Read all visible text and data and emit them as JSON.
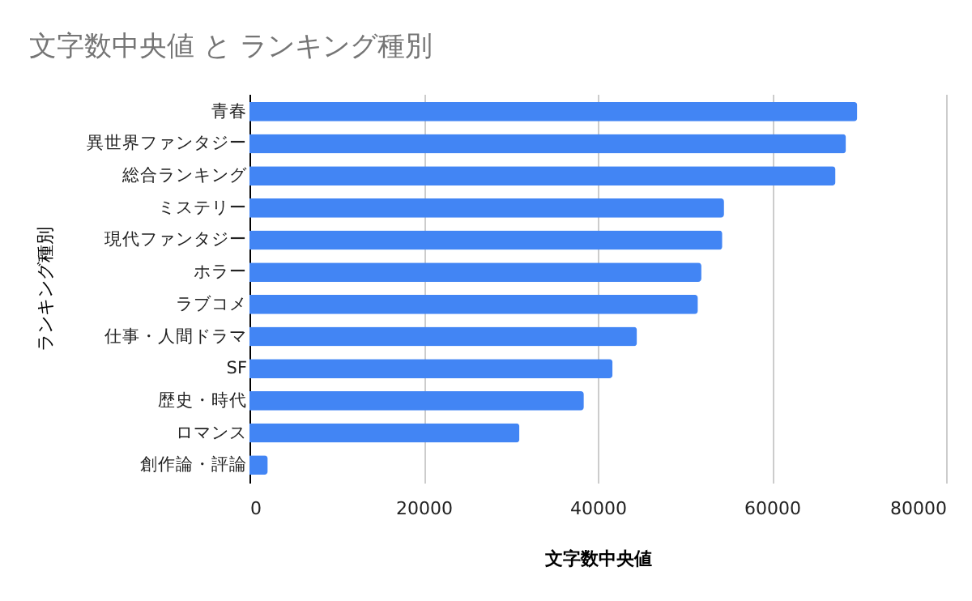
{
  "chart_data": {
    "type": "bar",
    "orientation": "horizontal",
    "title": "文字数中央値 と ランキング種別",
    "xlabel": "文字数中央値",
    "ylabel": "ランキング種別",
    "categories": [
      "青春",
      "異世界ファンタジー",
      "総合ランキング",
      "ミステリー",
      "現代ファンタジー",
      "ホラー",
      "ラブコメ",
      "仕事・人間ドラマ",
      "SF",
      "歴史・時代",
      "ロマンス",
      "創作論・評論"
    ],
    "values": [
      69800,
      68500,
      67300,
      54500,
      54300,
      51900,
      51500,
      44500,
      41700,
      38400,
      31000,
      2100
    ],
    "color": "#4285f4",
    "xlim": [
      0,
      80000
    ],
    "xticks": [
      0,
      20000,
      40000,
      60000,
      80000
    ],
    "grid": "x"
  }
}
